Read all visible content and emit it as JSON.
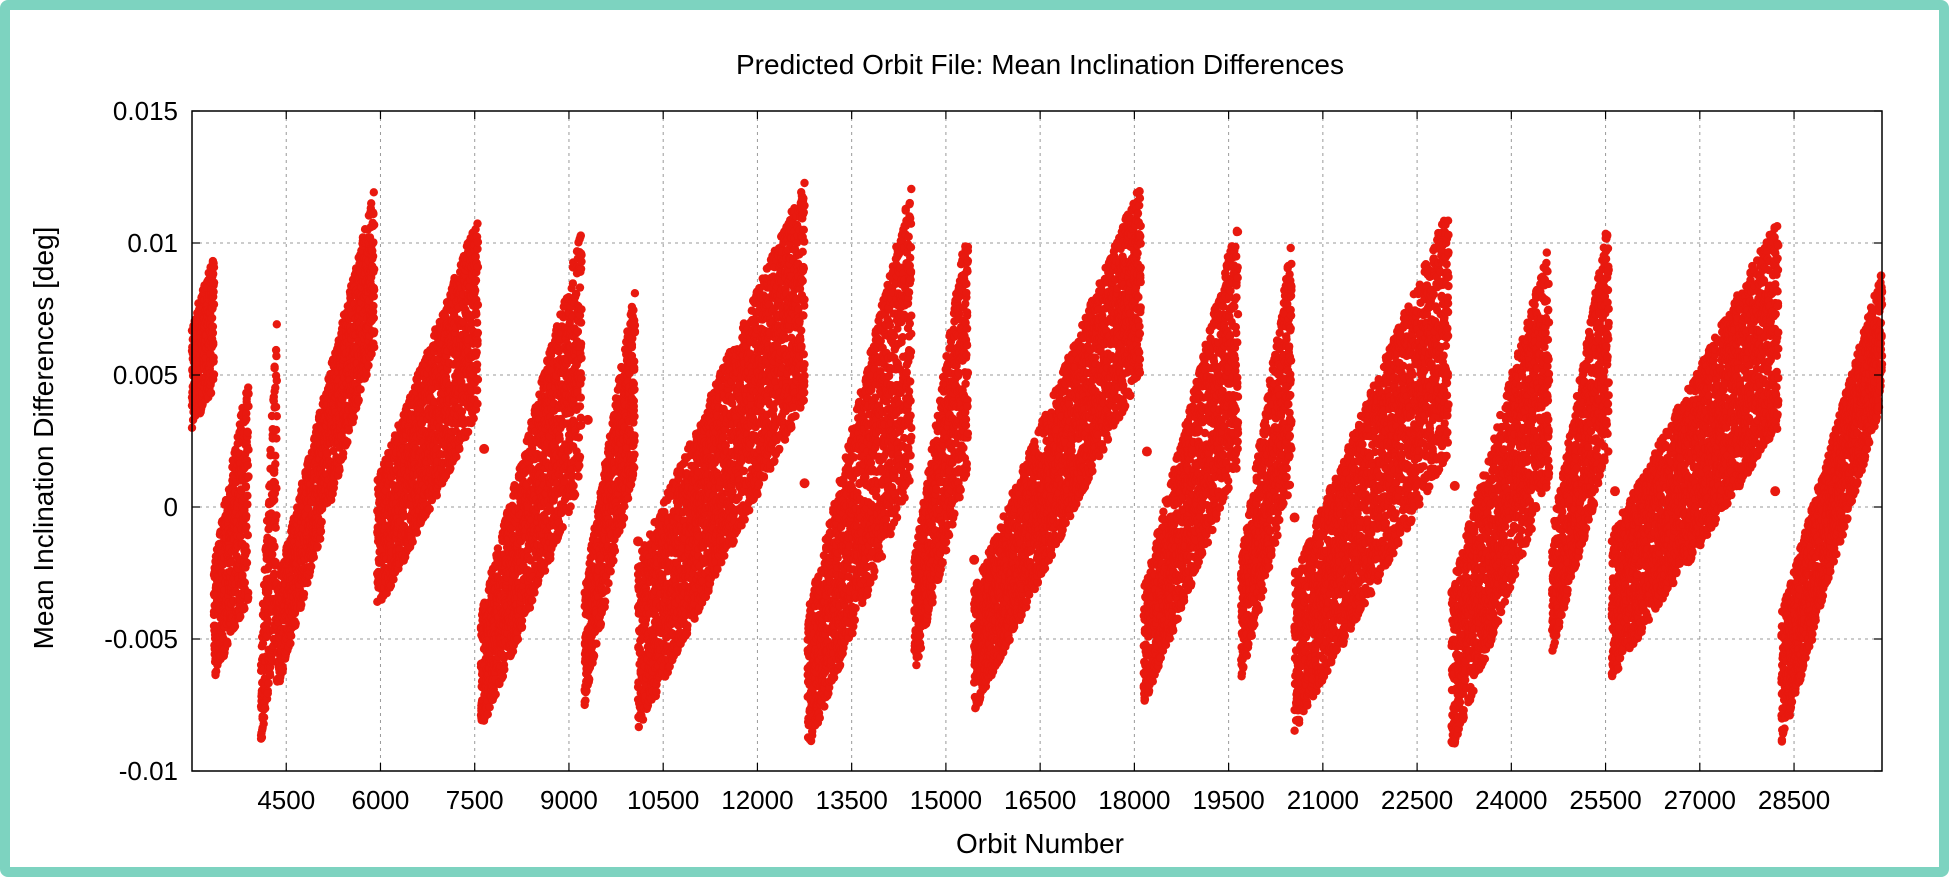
{
  "chart_data": {
    "type": "scatter",
    "title": "Predicted Orbit File: Mean Inclination Differences",
    "xlabel": "Orbit Number",
    "ylabel": "Mean Inclination Differences [deg]",
    "xlim": [
      3000,
      29900
    ],
    "ylim": [
      -0.01,
      0.015
    ],
    "xticks": [
      4500,
      6000,
      7500,
      9000,
      10500,
      12000,
      13500,
      15000,
      16500,
      18000,
      19500,
      21000,
      22500,
      24000,
      25500,
      27000,
      28500
    ],
    "yticks": [
      {
        "value": -0.01,
        "label": "-0.01"
      },
      {
        "value": -0.005,
        "label": "-0.005"
      },
      {
        "value": 0,
        "label": "0"
      },
      {
        "value": 0.005,
        "label": "0.005"
      },
      {
        "value": 0.01,
        "label": "0.01"
      },
      {
        "value": 0.015,
        "label": "0.015"
      }
    ],
    "grid": true,
    "marker_color": "#e8190f",
    "series": [
      {
        "segments": [
          {
            "x": [
              3000,
              3350
            ],
            "lo": [
              0.003,
              0.0045
            ],
            "hi": [
              0.007,
              0.0095
            ]
          },
          {
            "x": [
              3350,
              3900
            ],
            "lo": [
              -0.0065,
              -0.0035
            ],
            "hi": [
              -0.002,
              0.005
            ]
          },
          {
            "x": [
              4100,
              4350
            ],
            "lo": [
              -0.009,
              -0.0045
            ],
            "hi": [
              -0.005,
              0.0075
            ]
          },
          {
            "x": [
              4350,
              5900
            ],
            "lo": [
              -0.007,
              0.006
            ],
            "hi": [
              -0.003,
              0.012
            ]
          },
          {
            "x": [
              5950,
              7550
            ],
            "lo": [
              -0.004,
              0.0035
            ],
            "hi": [
              0.001,
              0.011
            ]
          },
          {
            "x": [
              7600,
              9200
            ],
            "lo": [
              -0.0085,
              0.001
            ],
            "hi": [
              -0.004,
              0.0105
            ]
          },
          {
            "x": [
              9250,
              10050
            ],
            "lo": [
              -0.0075,
              0.0015
            ],
            "hi": [
              -0.003,
              0.0085
            ]
          },
          {
            "x": [
              10100,
              12750
            ],
            "lo": [
              -0.0085,
              0.004
            ],
            "hi": [
              -0.002,
              0.0123
            ]
          },
          {
            "x": [
              12800,
              14450
            ],
            "lo": [
              -0.0092,
              0.001
            ],
            "hi": [
              -0.004,
              0.0123
            ]
          },
          {
            "x": [
              14500,
              15350
            ],
            "lo": [
              -0.0063,
              0.0015
            ],
            "hi": [
              -0.002,
              0.011
            ]
          },
          {
            "x": [
              15450,
              18100
            ],
            "lo": [
              -0.0078,
              0.005
            ],
            "hi": [
              -0.003,
              0.0123
            ]
          },
          {
            "x": [
              18150,
              19650
            ],
            "lo": [
              -0.0075,
              0.0015
            ],
            "hi": [
              -0.003,
              0.011
            ]
          },
          {
            "x": [
              19700,
              20500
            ],
            "lo": [
              -0.0065,
              0.001
            ],
            "hi": [
              -0.002,
              0.01
            ]
          },
          {
            "x": [
              20550,
              23000
            ],
            "lo": [
              -0.0085,
              0.002
            ],
            "hi": [
              -0.0025,
              0.0113
            ]
          },
          {
            "x": [
              23050,
              24600
            ],
            "lo": [
              -0.0093,
              0.001
            ],
            "hi": [
              -0.003,
              0.01
            ]
          },
          {
            "x": [
              24650,
              25550
            ],
            "lo": [
              -0.0055,
              0.002
            ],
            "hi": [
              -0.001,
              0.011
            ]
          },
          {
            "x": [
              25600,
              28250
            ],
            "lo": [
              -0.0065,
              0.003
            ],
            "hi": [
              -0.001,
              0.011
            ]
          },
          {
            "x": [
              28300,
              29900
            ],
            "lo": [
              -0.009,
              0.004
            ],
            "hi": [
              -0.004,
              0.009
            ]
          }
        ],
        "isolated_points": [
          {
            "x": 4300,
            "y": -0.0015
          },
          {
            "x": 7650,
            "y": 0.0022
          },
          {
            "x": 9300,
            "y": 0.0033
          },
          {
            "x": 10100,
            "y": -0.0013
          },
          {
            "x": 12750,
            "y": 0.0009
          },
          {
            "x": 15450,
            "y": -0.002
          },
          {
            "x": 18200,
            "y": 0.0021
          },
          {
            "x": 20550,
            "y": -0.0004
          },
          {
            "x": 23100,
            "y": 0.0008
          },
          {
            "x": 25650,
            "y": 0.0006
          },
          {
            "x": 28200,
            "y": 0.0006
          }
        ]
      }
    ]
  }
}
